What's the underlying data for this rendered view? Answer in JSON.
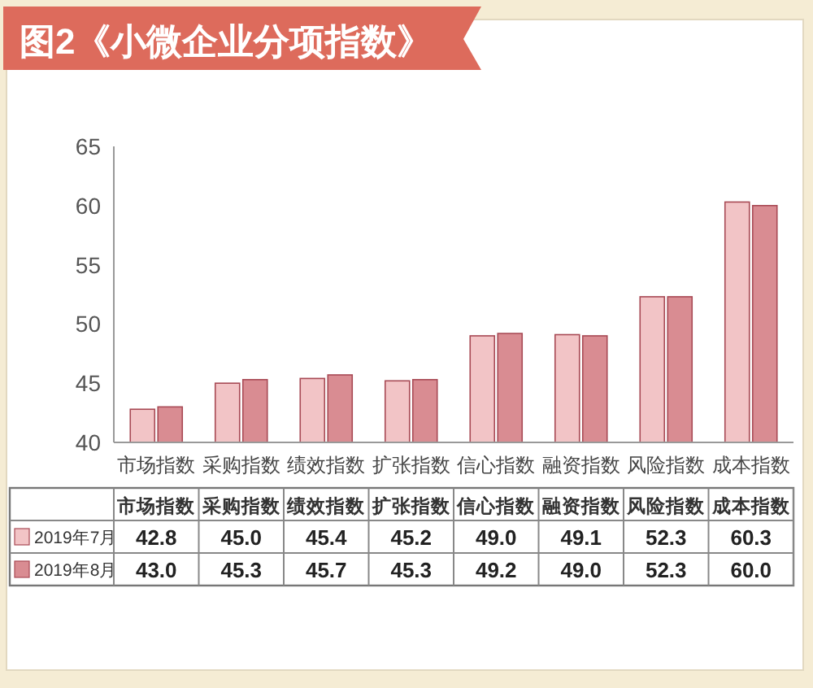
{
  "chart_data": {
    "type": "bar",
    "title": "图2《小微企业分项指数》",
    "categories": [
      "市场指数",
      "采购指数",
      "绩效指数",
      "扩张指数",
      "信心指数",
      "融资指数",
      "风险指数",
      "成本指数"
    ],
    "series": [
      {
        "name": "2019年7月",
        "color": "#f2c4c6",
        "values": [
          42.8,
          45.0,
          45.4,
          45.2,
          49.0,
          49.1,
          52.3,
          60.3
        ],
        "value_labels": [
          "42.8",
          "45.0",
          "45.4",
          "45.2",
          "49.0",
          "49.1",
          "52.3",
          "60.3"
        ]
      },
      {
        "name": "2019年8月",
        "color": "#d98c92",
        "values": [
          43.0,
          45.3,
          45.7,
          45.3,
          49.2,
          49.0,
          52.3,
          60.0
        ],
        "value_labels": [
          "43.0",
          "45.3",
          "45.7",
          "45.3",
          "49.2",
          "49.0",
          "52.3",
          "60.0"
        ]
      }
    ],
    "ylim": [
      40,
      65
    ],
    "yticks": [
      40,
      45,
      50,
      55,
      60,
      65
    ],
    "grid": false,
    "legend": "bottom"
  }
}
